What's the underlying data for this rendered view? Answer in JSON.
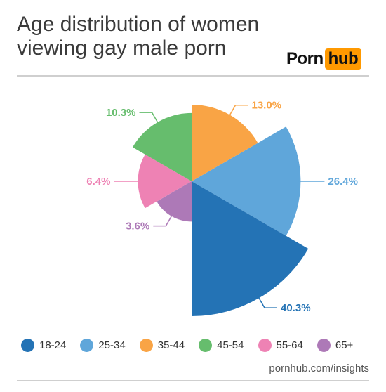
{
  "header": {
    "title_line1": "Age distribution of women",
    "title_line2": "viewing gay male porn",
    "logo_left": "Porn",
    "logo_right": "hub"
  },
  "colors": {
    "logo_accent": "#ff9900"
  },
  "chart_data": {
    "type": "pie",
    "variant": "polar-area (radius ~ value)",
    "title": "Age distribution of women viewing gay male porn",
    "slices": [
      {
        "category": "18-24",
        "value": 40.3,
        "label": "40.3%",
        "color": "#2473b5"
      },
      {
        "category": "25-34",
        "value": 26.4,
        "label": "26.4%",
        "color": "#5fa6da"
      },
      {
        "category": "35-44",
        "value": 13.0,
        "label": "13.0%",
        "color": "#f9a445"
      },
      {
        "category": "45-54",
        "value": 10.3,
        "label": "10.3%",
        "color": "#66bd6d"
      },
      {
        "category": "55-64",
        "value": 6.4,
        "label": "6.4%",
        "color": "#ee82b4"
      },
      {
        "category": "65+",
        "value": 3.6,
        "label": "3.6%",
        "color": "#ad79b7"
      }
    ],
    "legend": [
      "18-24",
      "25-34",
      "35-44",
      "45-54",
      "55-64",
      "65+"
    ],
    "legend_position": "bottom"
  },
  "footer": {
    "source": "pornhub.com/insights"
  }
}
